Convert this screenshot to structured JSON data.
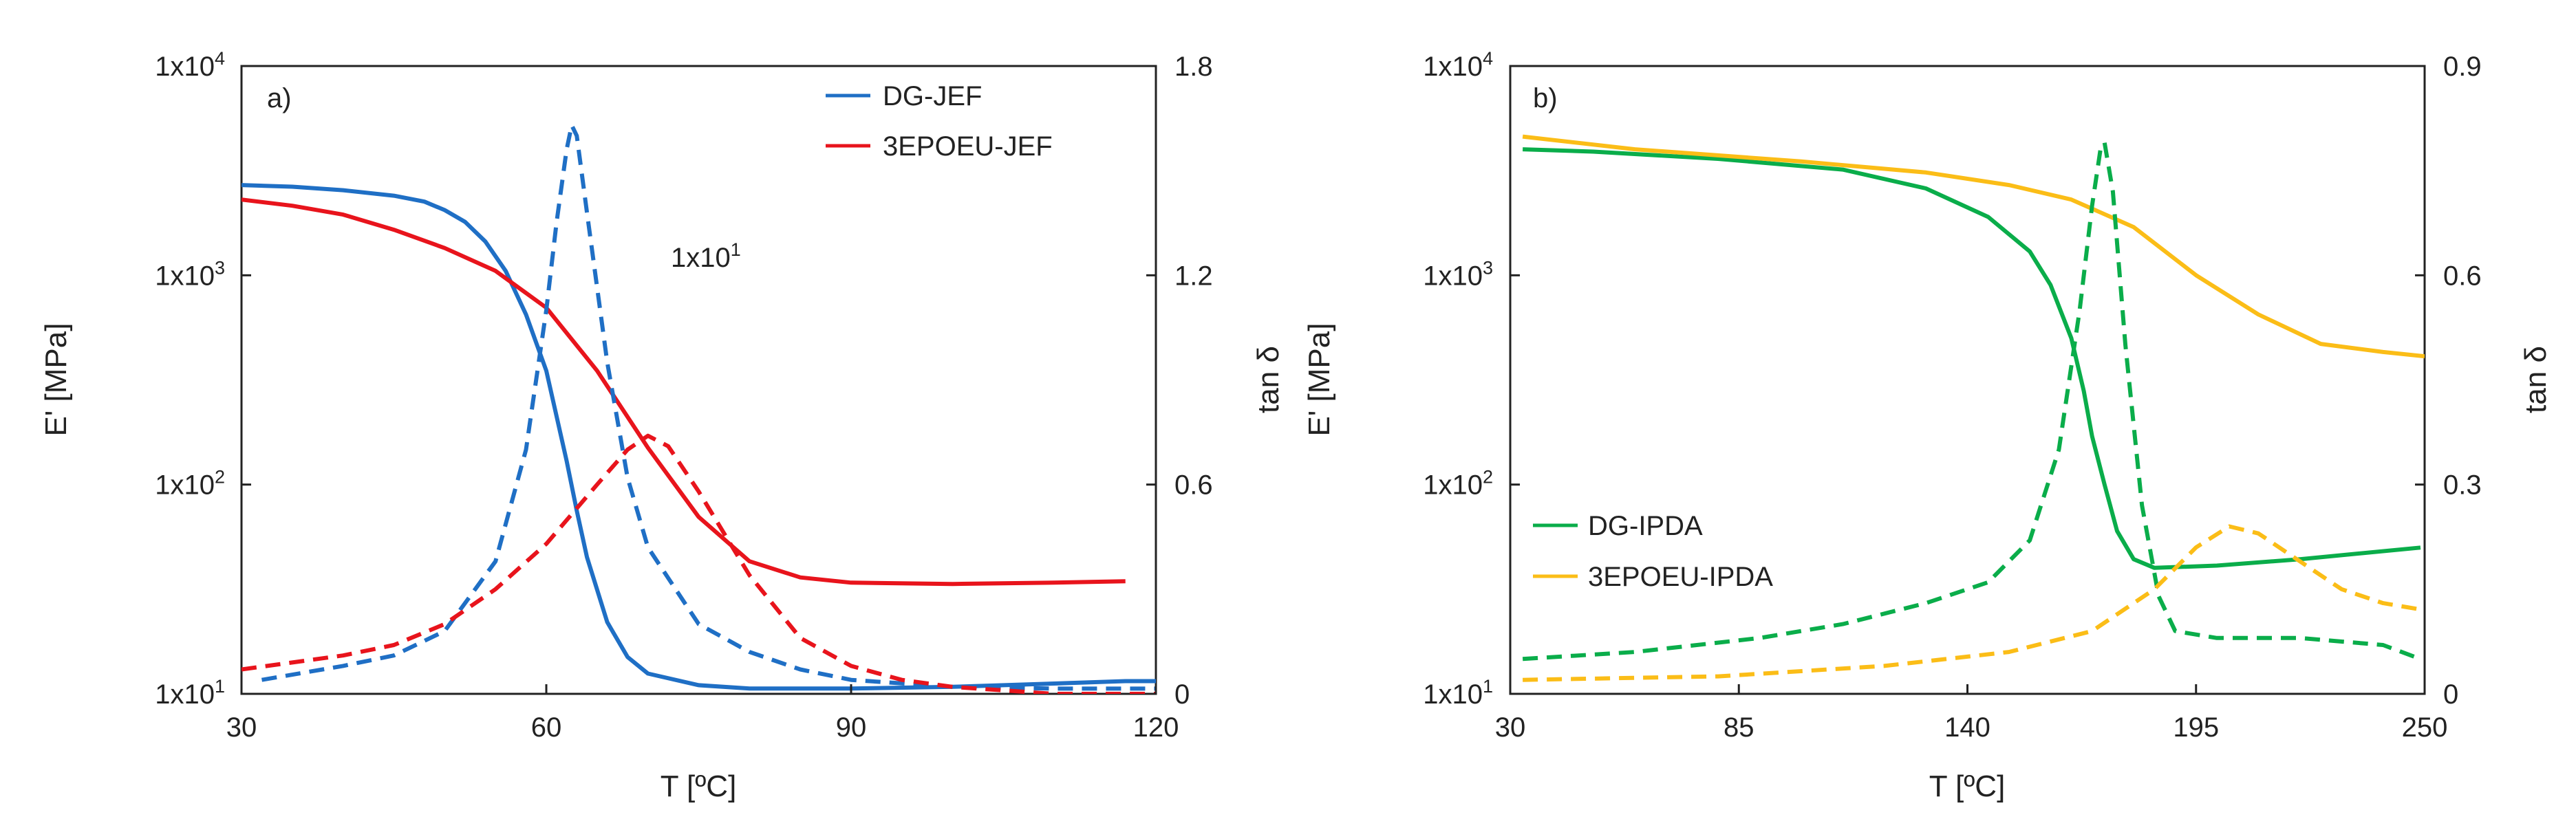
{
  "chart_data": [
    {
      "type": "line",
      "panel_label": "a)",
      "xlabel": "T [ºC]",
      "ylabel_left": "E' [MPa]",
      "ylabel_right": "tan δ",
      "xlim": [
        30,
        120
      ],
      "xticks": [
        "30",
        "60",
        "90",
        "120"
      ],
      "ylim_left_log10": [
        1,
        4
      ],
      "yticks_left": [
        {
          "base": "1x10",
          "exp": "1"
        },
        {
          "base": "1x10",
          "exp": "2"
        },
        {
          "base": "1x10",
          "exp": "3"
        },
        {
          "base": "1x10",
          "exp": "4"
        }
      ],
      "ylim_right": [
        0,
        1.8
      ],
      "yticks_right": [
        "0",
        "0.6",
        "1.2",
        "1.8"
      ],
      "annotation": {
        "base": "1x10",
        "exp": "1"
      },
      "legend": [
        "DG-JEF",
        "3EPOEU-JEF"
      ],
      "series": [
        {
          "name": "DG-JEF",
          "axis": "left",
          "style": "solid",
          "color": "#1f6fc5",
          "points": [
            [
              30,
              2700
            ],
            [
              35,
              2650
            ],
            [
              40,
              2550
            ],
            [
              45,
              2400
            ],
            [
              48,
              2250
            ],
            [
              50,
              2050
            ],
            [
              52,
              1800
            ],
            [
              54,
              1450
            ],
            [
              56,
              1050
            ],
            [
              58,
              650
            ],
            [
              60,
              350
            ],
            [
              62,
              130
            ],
            [
              63,
              75
            ],
            [
              64,
              45
            ],
            [
              66,
              22
            ],
            [
              68,
              15
            ],
            [
              70,
              12.5
            ],
            [
              75,
              11
            ],
            [
              80,
              10.6
            ],
            [
              90,
              10.6
            ],
            [
              100,
              10.8
            ],
            [
              110,
              11.2
            ],
            [
              117,
              11.5
            ],
            [
              120,
              11.5
            ]
          ]
        },
        {
          "name": "3EPOEU-JEF",
          "axis": "left",
          "style": "solid",
          "color": "#e8141c",
          "points": [
            [
              30,
              2300
            ],
            [
              35,
              2150
            ],
            [
              40,
              1950
            ],
            [
              45,
              1650
            ],
            [
              50,
              1350
            ],
            [
              55,
              1050
            ],
            [
              60,
              700
            ],
            [
              65,
              350
            ],
            [
              70,
              150
            ],
            [
              75,
              70
            ],
            [
              80,
              43
            ],
            [
              85,
              36
            ],
            [
              90,
              34
            ],
            [
              100,
              33.5
            ],
            [
              110,
              34
            ],
            [
              117,
              34.5
            ]
          ]
        },
        {
          "name": "DG-JEF tan δ",
          "axis": "right",
          "style": "dashed",
          "color": "#1f6fc5",
          "points": [
            [
              32,
              0.04
            ],
            [
              40,
              0.08
            ],
            [
              45,
              0.11
            ],
            [
              50,
              0.18
            ],
            [
              55,
              0.38
            ],
            [
              58,
              0.7
            ],
            [
              60,
              1.1
            ],
            [
              61,
              1.35
            ],
            [
              62,
              1.56
            ],
            [
              62.5,
              1.63
            ],
            [
              63,
              1.6
            ],
            [
              64,
              1.38
            ],
            [
              66,
              0.95
            ],
            [
              68,
              0.62
            ],
            [
              70,
              0.42
            ],
            [
              75,
              0.2
            ],
            [
              80,
              0.12
            ],
            [
              85,
              0.07
            ],
            [
              90,
              0.04
            ],
            [
              95,
              0.03
            ],
            [
              100,
              0.02
            ],
            [
              110,
              0.015
            ],
            [
              120,
              0.015
            ]
          ]
        },
        {
          "name": "3EPOEU-JEF tan δ",
          "axis": "right",
          "style": "dashed",
          "color": "#e8141c",
          "points": [
            [
              30,
              0.07
            ],
            [
              40,
              0.11
            ],
            [
              45,
              0.14
            ],
            [
              50,
              0.2
            ],
            [
              55,
              0.3
            ],
            [
              60,
              0.43
            ],
            [
              65,
              0.6
            ],
            [
              68,
              0.7
            ],
            [
              70,
              0.74
            ],
            [
              72,
              0.71
            ],
            [
              75,
              0.58
            ],
            [
              80,
              0.34
            ],
            [
              85,
              0.16
            ],
            [
              90,
              0.08
            ],
            [
              95,
              0.04
            ],
            [
              100,
              0.02
            ],
            [
              110,
              0.0
            ],
            [
              120,
              0.0
            ]
          ]
        }
      ]
    },
    {
      "type": "line",
      "panel_label": "b)",
      "xlabel": "T [ºC]",
      "ylabel_left": "E' [MPa]",
      "ylabel_right": "tan δ",
      "xlim": [
        30,
        250
      ],
      "xticks": [
        "30",
        "85",
        "140",
        "195",
        "250"
      ],
      "ylim_left_log10": [
        1,
        4
      ],
      "yticks_left": [
        {
          "base": "1x10",
          "exp": "1"
        },
        {
          "base": "1x10",
          "exp": "2"
        },
        {
          "base": "1x10",
          "exp": "3"
        },
        {
          "base": "1x10",
          "exp": "4"
        }
      ],
      "ylim_right": [
        0,
        0.9
      ],
      "yticks_right": [
        "0",
        "0.3",
        "0.6",
        "0.9"
      ],
      "legend": [
        "DG-IPDA",
        "3EPOEU-IPDA"
      ],
      "series": [
        {
          "name": "DG-IPDA",
          "axis": "left",
          "style": "solid",
          "color": "#0aad4a",
          "points": [
            [
              33,
              4000
            ],
            [
              50,
              3900
            ],
            [
              80,
              3600
            ],
            [
              110,
              3200
            ],
            [
              130,
              2600
            ],
            [
              145,
              1900
            ],
            [
              155,
              1300
            ],
            [
              160,
              900
            ],
            [
              165,
              500
            ],
            [
              168,
              280
            ],
            [
              170,
              170
            ],
            [
              173,
              100
            ],
            [
              176,
              60
            ],
            [
              180,
              44
            ],
            [
              185,
              40
            ],
            [
              200,
              41
            ],
            [
              220,
              44
            ],
            [
              249,
              50
            ]
          ]
        },
        {
          "name": "3EPOEU-IPDA",
          "axis": "left",
          "style": "solid",
          "color": "#fbbd17",
          "points": [
            [
              33,
              4600
            ],
            [
              60,
              4000
            ],
            [
              100,
              3500
            ],
            [
              130,
              3100
            ],
            [
              150,
              2700
            ],
            [
              165,
              2300
            ],
            [
              180,
              1700
            ],
            [
              195,
              1000
            ],
            [
              210,
              650
            ],
            [
              225,
              470
            ],
            [
              240,
              430
            ],
            [
              250,
              410
            ]
          ]
        },
        {
          "name": "DG-IPDA tan δ",
          "axis": "right",
          "style": "dashed",
          "color": "#0aad4a",
          "points": [
            [
              33,
              0.05
            ],
            [
              60,
              0.06
            ],
            [
              90,
              0.08
            ],
            [
              110,
              0.1
            ],
            [
              130,
              0.13
            ],
            [
              145,
              0.16
            ],
            [
              155,
              0.22
            ],
            [
              162,
              0.35
            ],
            [
              167,
              0.55
            ],
            [
              170,
              0.7
            ],
            [
              172,
              0.78
            ],
            [
              173,
              0.79
            ],
            [
              175,
              0.72
            ],
            [
              178,
              0.5
            ],
            [
              182,
              0.27
            ],
            [
              186,
              0.14
            ],
            [
              190,
              0.09
            ],
            [
              200,
              0.08
            ],
            [
              220,
              0.08
            ],
            [
              240,
              0.07
            ],
            [
              249,
              0.05
            ]
          ]
        },
        {
          "name": "3EPOEU-IPDA tan δ",
          "axis": "right",
          "style": "dashed",
          "color": "#fbbd17",
          "points": [
            [
              33,
              0.02
            ],
            [
              80,
              0.025
            ],
            [
              120,
              0.04
            ],
            [
              150,
              0.06
            ],
            [
              170,
              0.09
            ],
            [
              185,
              0.15
            ],
            [
              195,
              0.21
            ],
            [
              203,
              0.24
            ],
            [
              210,
              0.23
            ],
            [
              220,
              0.19
            ],
            [
              230,
              0.15
            ],
            [
              240,
              0.13
            ],
            [
              250,
              0.12
            ]
          ]
        }
      ]
    }
  ]
}
